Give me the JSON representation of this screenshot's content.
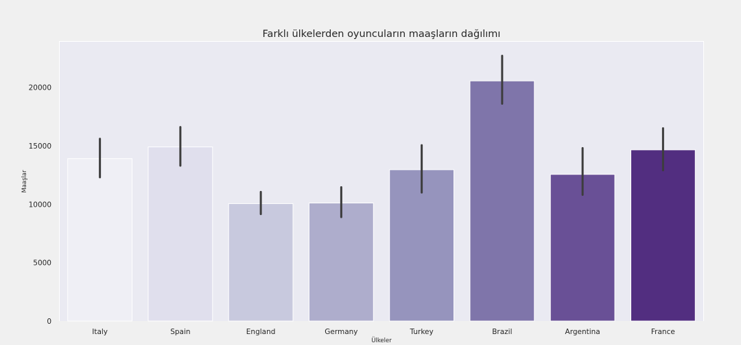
{
  "chart_data": {
    "type": "bar",
    "title": "Farklı ülkelerden oyuncuların maaşların dağılımı",
    "xlabel": "Ülkeler",
    "ylabel": "Maaşlar",
    "categories": [
      "Italy",
      "Spain",
      "England",
      "Germany",
      "Turkey",
      "Brazil",
      "Argentina",
      "France"
    ],
    "values": [
      13900,
      14900,
      10050,
      10100,
      12950,
      20550,
      12550,
      14650
    ],
    "error_low": [
      12300,
      13300,
      9150,
      8900,
      11000,
      18600,
      10800,
      12900
    ],
    "error_high": [
      15600,
      16600,
      11050,
      11450,
      15050,
      22700,
      14800,
      16500
    ],
    "colors": [
      "#efeff5",
      "#e0dfed",
      "#c8c9de",
      "#aeadcc",
      "#9694bd",
      "#7f75aa",
      "#695096",
      "#522e80"
    ],
    "ylim": [
      0,
      23900
    ],
    "yticks": [
      0,
      5000,
      10000,
      15000,
      20000
    ],
    "plot_background": "#eaeaf2",
    "figure_background": "#f0f0f0",
    "errorbar_color": "#3d3d3d",
    "grid": false
  }
}
